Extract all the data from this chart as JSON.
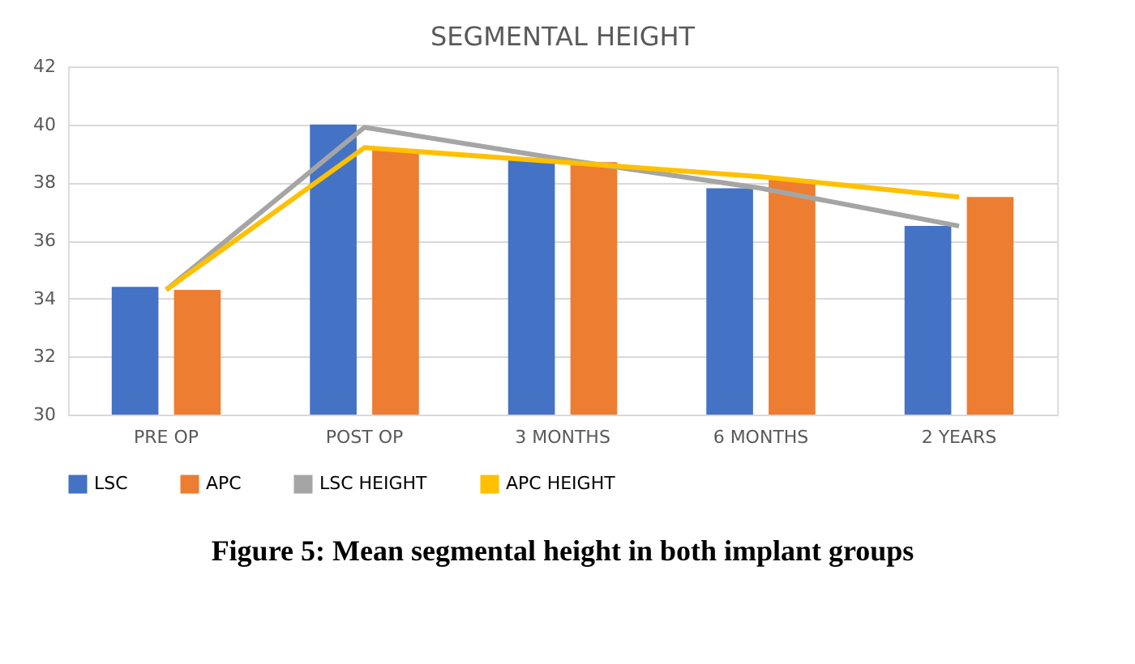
{
  "chart_data": {
    "type": "bar",
    "title": "SEGMENTAL HEIGHT",
    "categories": [
      "PRE OP",
      "POST OP",
      "3 MONTHS",
      "6 MONTHS",
      "2 YEARS"
    ],
    "series": [
      {
        "name": "LSC",
        "type": "bar",
        "color": "#4472c4",
        "values": [
          34.4,
          40.0,
          38.8,
          37.8,
          36.5
        ]
      },
      {
        "name": "APC",
        "type": "bar",
        "color": "#ed7d31",
        "values": [
          34.3,
          39.1,
          38.7,
          38.1,
          37.5
        ]
      },
      {
        "name": "LSC HEIGHT",
        "type": "line",
        "color": "#a5a5a5",
        "values": [
          34.3,
          39.9,
          38.8,
          37.8,
          36.5
        ]
      },
      {
        "name": "APC HEIGHT",
        "type": "line",
        "color": "#ffc000",
        "values": [
          34.3,
          39.2,
          38.7,
          38.2,
          37.5
        ]
      }
    ],
    "ylim": [
      30,
      42
    ],
    "yticks": [
      30,
      32,
      34,
      36,
      38,
      40,
      42
    ],
    "grid": "y",
    "legend": "bottom",
    "marker": "none",
    "line_style": "solid",
    "annotations": [
      "Figure 5: Mean segmental height in both implant groups"
    ]
  }
}
